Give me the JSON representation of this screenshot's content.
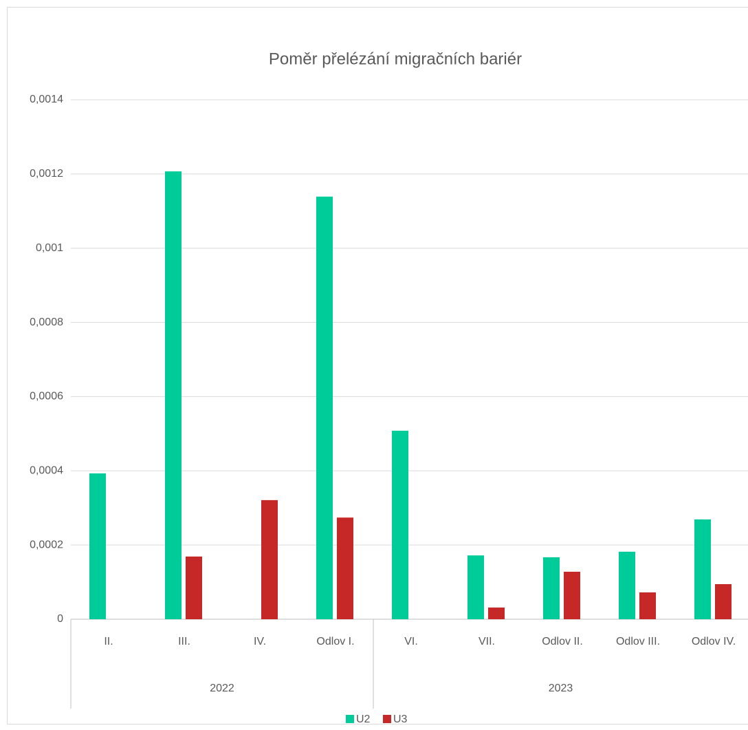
{
  "chart_data": {
    "type": "bar",
    "title": "Poměr přelézání migračních bariér",
    "category_groups": [
      {
        "name": "2022",
        "categories": [
          "II.",
          "III.",
          "IV.",
          "Odlov I."
        ]
      },
      {
        "name": "2023",
        "categories": [
          "VI.",
          "VII.",
          "Odlov II.",
          "Odlov III.",
          "Odlov IV."
        ]
      }
    ],
    "series": [
      {
        "name": "U2",
        "color": "#00cc99",
        "values": [
          0.000393,
          0.001207,
          0,
          0.001139,
          0.000508,
          0.000172,
          0.000167,
          0.000182,
          0.000269
        ]
      },
      {
        "name": "U3",
        "color": "#c62828",
        "values": [
          0,
          0.000169,
          0.000321,
          0.000274,
          0,
          3.15e-05,
          0.000128,
          7.23e-05,
          9.46e-05
        ]
      }
    ],
    "ylim": [
      0,
      0.0014
    ],
    "yticks": [
      0,
      {
        "value": 0.0002,
        "label": "0,0002"
      },
      {
        "value": 0.0004,
        "label": "0,0004"
      },
      {
        "value": 0.0006,
        "label": "0,0006"
      },
      {
        "value": 0.0008,
        "label": "0,0008"
      },
      {
        "value": 0.001,
        "label": "0,001"
      },
      {
        "value": 0.0012,
        "label": "0,0012"
      },
      {
        "value": 0.0014,
        "label": "0,0014"
      }
    ],
    "grid": true,
    "legend": "bottom"
  }
}
